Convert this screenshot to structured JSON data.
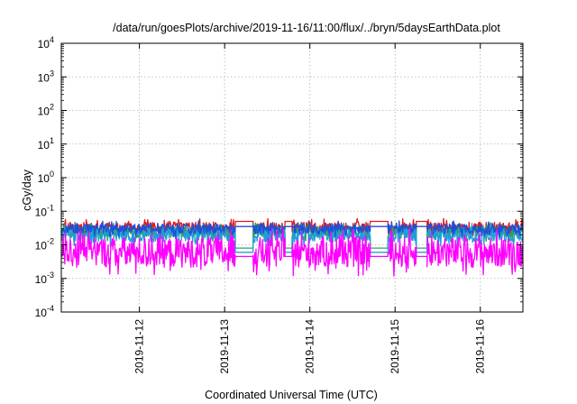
{
  "chart_data": {
    "type": "line",
    "title": "/data/run/goesPlots/archive/2019-11-16/11:00/flux/../bryn/5daysEarthData.plot",
    "xlabel": "Coordinated Universal Time (UTC)",
    "ylabel": "cGy/day",
    "y_scale": "log",
    "ylim": [
      0.0001,
      10000
    ],
    "y_ticks": [
      {
        "value": 0.0001,
        "base": "10",
        "exp": "-4"
      },
      {
        "value": 0.001,
        "base": "10",
        "exp": "-3"
      },
      {
        "value": 0.01,
        "base": "10",
        "exp": "-2"
      },
      {
        "value": 0.1,
        "base": "10",
        "exp": "-1"
      },
      {
        "value": 1,
        "base": "10",
        "exp": "0"
      },
      {
        "value": 10,
        "base": "10",
        "exp": "1"
      },
      {
        "value": 100,
        "base": "10",
        "exp": "2"
      },
      {
        "value": 1000,
        "base": "10",
        "exp": "3"
      },
      {
        "value": 10000,
        "base": "10",
        "exp": "4"
      }
    ],
    "xlim": [
      "2019-11-11 02:00",
      "2019-11-16 12:00"
    ],
    "x_ticks": [
      "2019-11-12",
      "2019-11-13",
      "2019-11-14",
      "2019-11-15",
      "2019-11-16"
    ],
    "grid": true,
    "data_gaps": [
      {
        "start": "2019-11-13 03:00",
        "end": "2019-11-13 08:00"
      },
      {
        "start": "2019-11-13 17:00",
        "end": "2019-11-13 19:00"
      },
      {
        "start": "2019-11-14 17:00",
        "end": "2019-11-14 22:00"
      },
      {
        "start": "2019-11-15 06:00",
        "end": "2019-11-15 09:00"
      }
    ],
    "series": [
      {
        "color": "#e41a1c",
        "base": 0.032,
        "spread": 0.35,
        "gap_value": 0.05
      },
      {
        "color": "#2ca25f",
        "base": 0.024,
        "spread": 0.35,
        "gap_value": 0.008
      },
      {
        "color": "#1f9ed8",
        "base": 0.02,
        "spread": 0.45,
        "gap_value": 0.006
      },
      {
        "color": "#1f4fd8",
        "base": 0.03,
        "spread": 0.3,
        "gap_value": 0.035
      },
      {
        "color": "#ff00ff",
        "base": 0.006,
        "spread": 0.9,
        "gap_value": 0.0045
      }
    ]
  }
}
